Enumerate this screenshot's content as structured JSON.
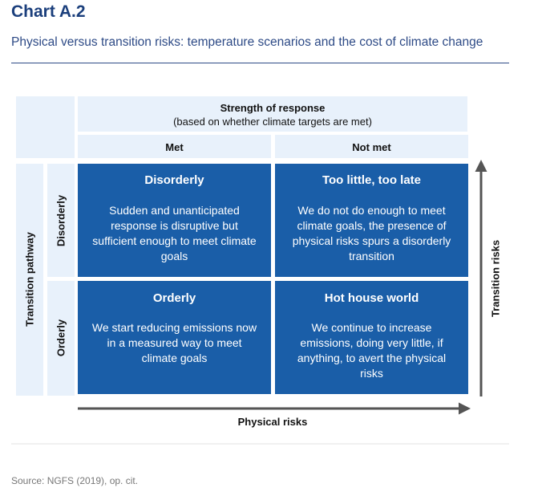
{
  "header": {
    "title": "Chart A.2",
    "subtitle": "Physical versus transition risks: temperature scenarios and the cost of climate change"
  },
  "diagram": {
    "column_header": {
      "title": "Strength of response",
      "subtitle": "(based on whether climate targets are met)"
    },
    "columns": [
      "Met",
      "Not met"
    ],
    "row_header": "Transition pathway",
    "rows": [
      "Disorderly",
      "Orderly"
    ],
    "cells": [
      [
        {
          "title": "Disorderly",
          "lines": [
            "Sudden and unanticipated",
            "response is disruptive but",
            "sufficient enough to meet climate",
            "goals"
          ]
        },
        {
          "title": "Too little, too late",
          "lines": [
            "We do not do enough to meet",
            "climate goals, the presence of",
            "physical risks spurs a disorderly",
            "transition"
          ]
        }
      ],
      [
        {
          "title": "Orderly",
          "lines": [
            "We start reducing emissions now",
            "in a measured way to meet",
            "climate goals"
          ]
        },
        {
          "title": "Hot house world",
          "lines": [
            "We continue to increase",
            "emissions, doing very little, if",
            "anything, to avert the physical",
            "risks"
          ]
        }
      ]
    ],
    "x_axis": "Physical risks",
    "y_axis": "Transition risks"
  },
  "footer": {
    "source": "Source: NGFS (2019), op. cit."
  }
}
